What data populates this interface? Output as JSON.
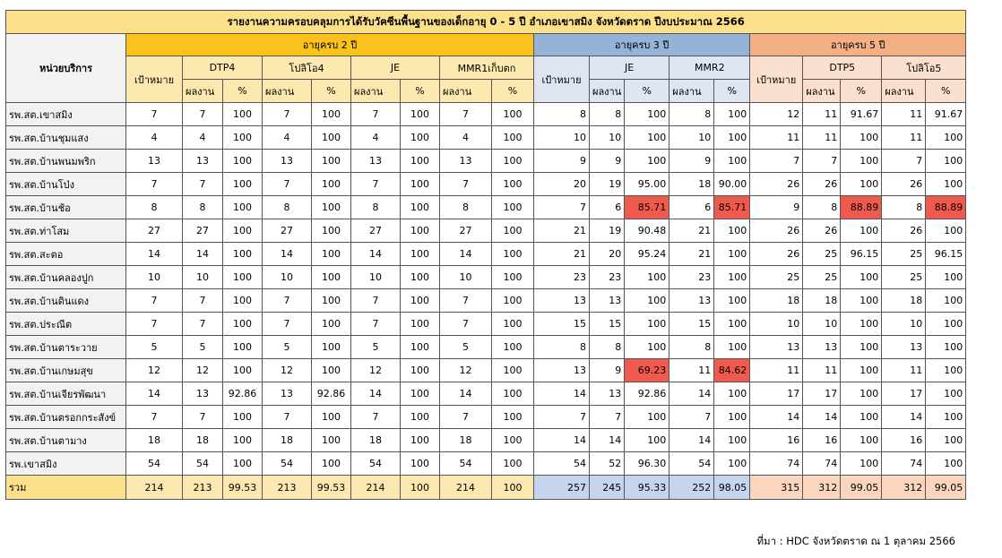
{
  "title": "รายงานความครอบคลุมการได้รับวัคซีนพื้นฐานของเด็กอายุ 0 - 5 ปี อำเภอเขาสมิง จังหวัดตราด  ปีงบประมาณ 2566",
  "unit_header": "หน่วยบริการ",
  "groups": {
    "age2": "อายุครบ 2 ปี",
    "age3": "อายุครบ 3 ปี",
    "age5": "อายุครบ 5 ปี"
  },
  "vaccines": {
    "dtp4": "DTP4",
    "opv4": "โปลิโอ4",
    "je2": "JE",
    "mmr1": "MMR1เก็บตก",
    "je3": "JE",
    "mmr2": "MMR2",
    "dtp5": "DTP5",
    "opv5": "โปลิโอ5"
  },
  "labels": {
    "target": "เป้าหมาย",
    "result": "ผลงาน",
    "pct": "%"
  },
  "highlight_color": "#f05a4e",
  "rows": [
    {
      "name": "รพ.สต.เขาสมิง",
      "v": [
        "7",
        "7",
        "100",
        "7",
        "100",
        "7",
        "100",
        "7",
        "100",
        "8",
        "8",
        "100",
        "8",
        "100",
        "12",
        "11",
        "91.67",
        "11",
        "91.67"
      ],
      "hl": []
    },
    {
      "name": "รพ.สต.บ้านชุมแสง",
      "v": [
        "4",
        "4",
        "100",
        "4",
        "100",
        "4",
        "100",
        "4",
        "100",
        "10",
        "10",
        "100",
        "10",
        "100",
        "11",
        "11",
        "100",
        "11",
        "100"
      ],
      "hl": []
    },
    {
      "name": "รพ.สต.บ้านพนมพริก",
      "v": [
        "13",
        "13",
        "100",
        "13",
        "100",
        "13",
        "100",
        "13",
        "100",
        "9",
        "9",
        "100",
        "9",
        "100",
        "7",
        "7",
        "100",
        "7",
        "100"
      ],
      "hl": []
    },
    {
      "name": "รพ.สต.บ้านโป่ง",
      "v": [
        "7",
        "7",
        "100",
        "7",
        "100",
        "7",
        "100",
        "7",
        "100",
        "20",
        "19",
        "95.00",
        "18",
        "90.00",
        "26",
        "26",
        "100",
        "26",
        "100"
      ],
      "hl": []
    },
    {
      "name": "รพ.สต.บ้านช้อ",
      "v": [
        "8",
        "8",
        "100",
        "8",
        "100",
        "8",
        "100",
        "8",
        "100",
        "7",
        "6",
        "85.71",
        "6",
        "85.71",
        "9",
        "8",
        "88.89",
        "8",
        "88.89"
      ],
      "hl": [
        11,
        13,
        16,
        18
      ]
    },
    {
      "name": "รพ.สต.ท่าโสม",
      "v": [
        "27",
        "27",
        "100",
        "27",
        "100",
        "27",
        "100",
        "27",
        "100",
        "21",
        "19",
        "90.48",
        "21",
        "100",
        "26",
        "26",
        "100",
        "26",
        "100"
      ],
      "hl": []
    },
    {
      "name": "รพ.สต.สะตอ",
      "v": [
        "14",
        "14",
        "100",
        "14",
        "100",
        "14",
        "100",
        "14",
        "100",
        "21",
        "20",
        "95.24",
        "21",
        "100",
        "26",
        "25",
        "96.15",
        "25",
        "96.15"
      ],
      "hl": []
    },
    {
      "name": "รพ.สต.บ้านคลองปูก",
      "v": [
        "10",
        "10",
        "100",
        "10",
        "100",
        "10",
        "100",
        "10",
        "100",
        "23",
        "23",
        "100",
        "23",
        "100",
        "25",
        "25",
        "100",
        "25",
        "100"
      ],
      "hl": []
    },
    {
      "name": "รพ.สต.บ้านดินแดง",
      "v": [
        "7",
        "7",
        "100",
        "7",
        "100",
        "7",
        "100",
        "7",
        "100",
        "13",
        "13",
        "100",
        "13",
        "100",
        "18",
        "18",
        "100",
        "18",
        "100"
      ],
      "hl": []
    },
    {
      "name": "รพ.สต.ประณีต",
      "v": [
        "7",
        "7",
        "100",
        "7",
        "100",
        "7",
        "100",
        "7",
        "100",
        "15",
        "15",
        "100",
        "15",
        "100",
        "10",
        "10",
        "100",
        "10",
        "100"
      ],
      "hl": []
    },
    {
      "name": "รพ.สต.บ้านตาระวาย",
      "v": [
        "5",
        "5",
        "100",
        "5",
        "100",
        "5",
        "100",
        "5",
        "100",
        "8",
        "8",
        "100",
        "8",
        "100",
        "13",
        "13",
        "100",
        "13",
        "100"
      ],
      "hl": []
    },
    {
      "name": "รพ.สต.บ้านเกษมสุข",
      "v": [
        "12",
        "12",
        "100",
        "12",
        "100",
        "12",
        "100",
        "12",
        "100",
        "13",
        "9",
        "69.23",
        "11",
        "84.62",
        "11",
        "11",
        "100",
        "11",
        "100"
      ],
      "hl": [
        11,
        13
      ]
    },
    {
      "name": "รพ.สต.บ้านเจียรพัฒนา",
      "v": [
        "14",
        "13",
        "92.86",
        "13",
        "92.86",
        "14",
        "100",
        "14",
        "100",
        "14",
        "13",
        "92.86",
        "14",
        "100",
        "17",
        "17",
        "100",
        "17",
        "100"
      ],
      "hl": []
    },
    {
      "name": "รพ.สต.บ้านตรอกกระสังข์",
      "v": [
        "7",
        "7",
        "100",
        "7",
        "100",
        "7",
        "100",
        "7",
        "100",
        "7",
        "7",
        "100",
        "7",
        "100",
        "14",
        "14",
        "100",
        "14",
        "100"
      ],
      "hl": []
    },
    {
      "name": "รพ.สต.บ้านตามาง",
      "v": [
        "18",
        "18",
        "100",
        "18",
        "100",
        "18",
        "100",
        "18",
        "100",
        "14",
        "14",
        "100",
        "14",
        "100",
        "16",
        "16",
        "100",
        "16",
        "100"
      ],
      "hl": []
    },
    {
      "name": "รพ.เขาสมิง",
      "v": [
        "54",
        "54",
        "100",
        "54",
        "100",
        "54",
        "100",
        "54",
        "100",
        "54",
        "52",
        "96.30",
        "54",
        "100",
        "74",
        "74",
        "100",
        "74",
        "100"
      ],
      "hl": []
    }
  ],
  "total": {
    "name": "รวม",
    "v": [
      "214",
      "213",
      "99.53",
      "213",
      "99.53",
      "214",
      "100",
      "214",
      "100",
      "257",
      "245",
      "95.33",
      "252",
      "98.05",
      "315",
      "312",
      "99.05",
      "312",
      "99.05"
    ]
  },
  "source": "ที่มา : HDC จังหวัดตราด ณ 1 ตุลาคม 2566"
}
